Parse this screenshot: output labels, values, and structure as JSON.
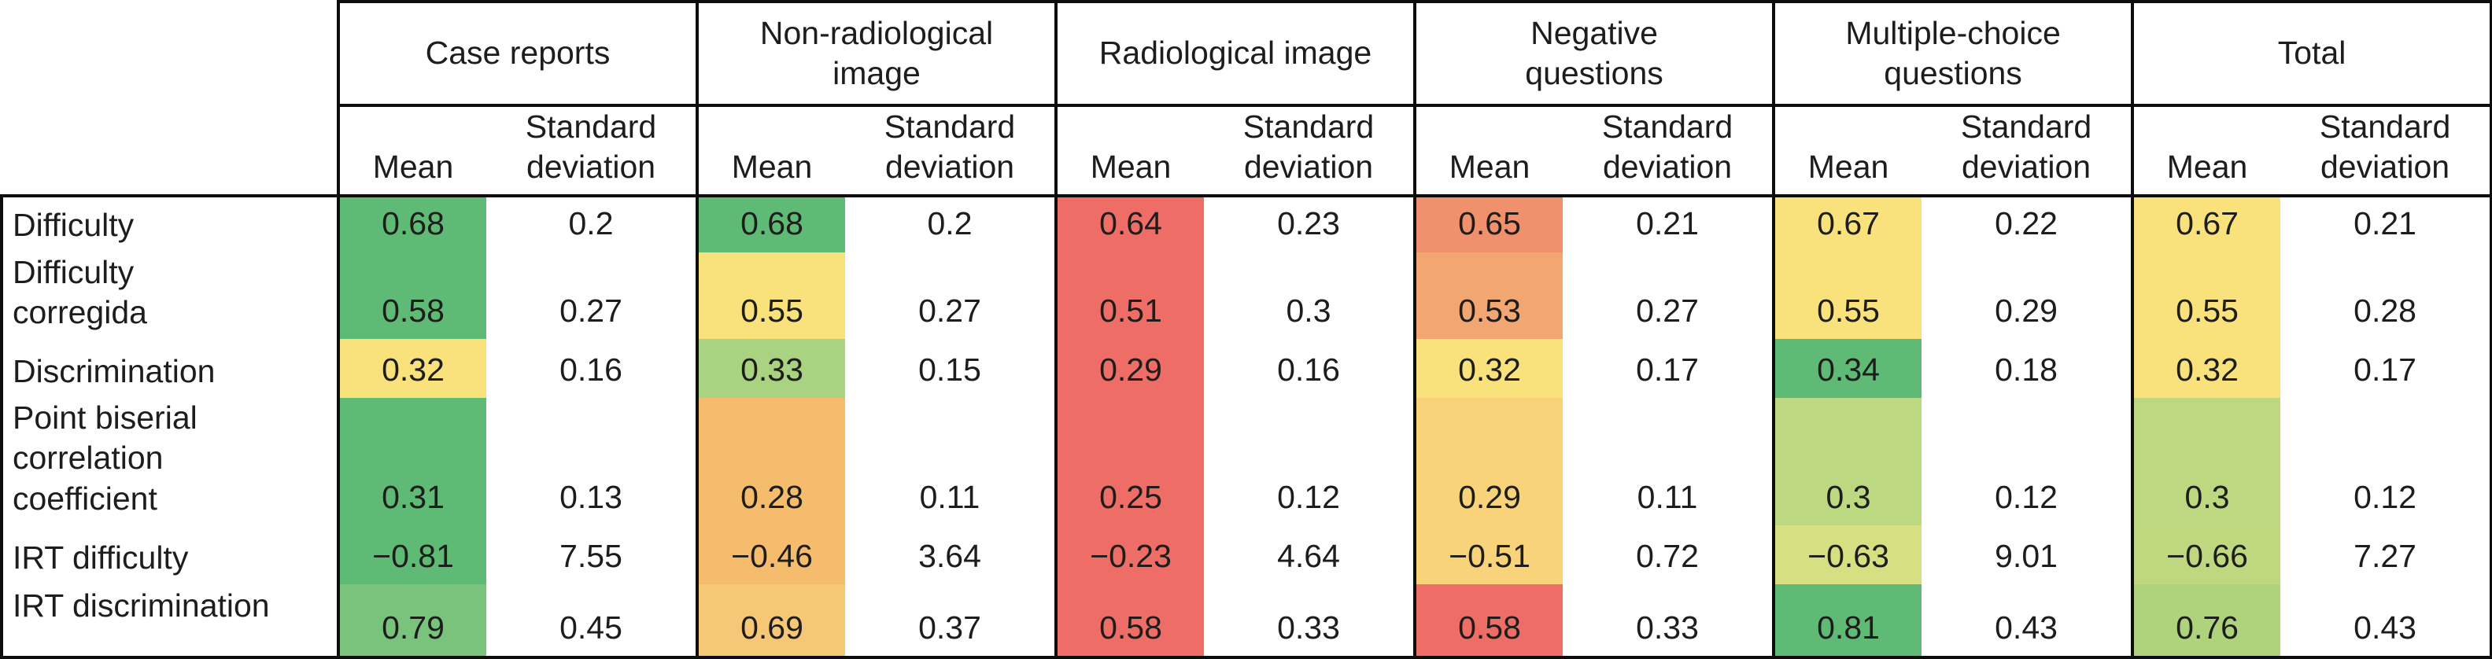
{
  "table": {
    "corner_label": "",
    "groups": [
      {
        "label": "Case reports"
      },
      {
        "label": "Non-radiological\nimage"
      },
      {
        "label": "Radiological image"
      },
      {
        "label": "Negative\nquestions"
      },
      {
        "label": "Multiple-choice\nquestions"
      },
      {
        "label": "Total"
      }
    ],
    "subheaders": {
      "mean": "Mean",
      "sd": "Standard\ndeviation"
    },
    "rows": [
      {
        "label": "Difficulty",
        "cells": [
          {
            "mean": "0.68",
            "sd": "0.2",
            "color": "#5EBA74"
          },
          {
            "mean": "0.68",
            "sd": "0.2",
            "color": "#5EBA74"
          },
          {
            "mean": "0.64",
            "sd": "0.23",
            "color": "#EE6D66"
          },
          {
            "mean": "0.65",
            "sd": "0.21",
            "color": "#F0906C"
          },
          {
            "mean": "0.67",
            "sd": "0.22",
            "color": "#F9E17C"
          },
          {
            "mean": "0.67",
            "sd": "0.21",
            "color": "#F9E17C"
          }
        ]
      },
      {
        "label": "Difficulty\ncorregida",
        "cells": [
          {
            "mean": "0.58",
            "sd": "0.27",
            "color": "#5EBA74"
          },
          {
            "mean": "0.55",
            "sd": "0.27",
            "color": "#F9E17C"
          },
          {
            "mean": "0.51",
            "sd": "0.3",
            "color": "#EE6D66"
          },
          {
            "mean": "0.53",
            "sd": "0.27",
            "color": "#F2A772"
          },
          {
            "mean": "0.55",
            "sd": "0.29",
            "color": "#F9E17C"
          },
          {
            "mean": "0.55",
            "sd": "0.28",
            "color": "#F9E17C"
          }
        ]
      },
      {
        "label": "Discrimination",
        "cells": [
          {
            "mean": "0.32",
            "sd": "0.16",
            "color": "#F9E17C"
          },
          {
            "mean": "0.33",
            "sd": "0.15",
            "color": "#A9D281"
          },
          {
            "mean": "0.29",
            "sd": "0.16",
            "color": "#EE6D66"
          },
          {
            "mean": "0.32",
            "sd": "0.17",
            "color": "#F9E17C"
          },
          {
            "mean": "0.34",
            "sd": "0.18",
            "color": "#5EBA74"
          },
          {
            "mean": "0.32",
            "sd": "0.17",
            "color": "#F9E17C"
          }
        ]
      },
      {
        "label": "Point biserial\ncorrelation\ncoefficient",
        "cells": [
          {
            "mean": "0.31",
            "sd": "0.13",
            "color": "#5EBA74"
          },
          {
            "mean": "0.28",
            "sd": "0.11",
            "color": "#F5BC6E"
          },
          {
            "mean": "0.25",
            "sd": "0.12",
            "color": "#EE6D66"
          },
          {
            "mean": "0.29",
            "sd": "0.11",
            "color": "#F8D37A"
          },
          {
            "mean": "0.3",
            "sd": "0.12",
            "color": "#BCD881"
          },
          {
            "mean": "0.3",
            "sd": "0.12",
            "color": "#BDD881"
          }
        ]
      },
      {
        "label": "IRT difficulty",
        "cells": [
          {
            "mean": "−0.81",
            "sd": "7.55",
            "color": "#5EBA74"
          },
          {
            "mean": "−0.46",
            "sd": "3.64",
            "color": "#F5BC6E"
          },
          {
            "mean": "−0.23",
            "sd": "4.64",
            "color": "#EE6D66"
          },
          {
            "mean": "−0.51",
            "sd": "0.72",
            "color": "#F8D37A"
          },
          {
            "mean": "−0.63",
            "sd": "9.01",
            "color": "#D6DF82"
          },
          {
            "mean": "−0.66",
            "sd": "7.27",
            "color": "#BFD880"
          }
        ]
      },
      {
        "label": "IRT discrimination",
        "cells": [
          {
            "mean": "0.79",
            "sd": "0.45",
            "color": "#79C37D"
          },
          {
            "mean": "0.69",
            "sd": "0.37",
            "color": "#F7C778"
          },
          {
            "mean": "0.58",
            "sd": "0.33",
            "color": "#EE6D66"
          },
          {
            "mean": "0.58",
            "sd": "0.33",
            "color": "#EE6D66"
          },
          {
            "mean": "0.81",
            "sd": "0.43",
            "color": "#5EBA74"
          },
          {
            "mean": "0.76",
            "sd": "0.43",
            "color": "#AFD37D"
          }
        ]
      }
    ]
  }
}
